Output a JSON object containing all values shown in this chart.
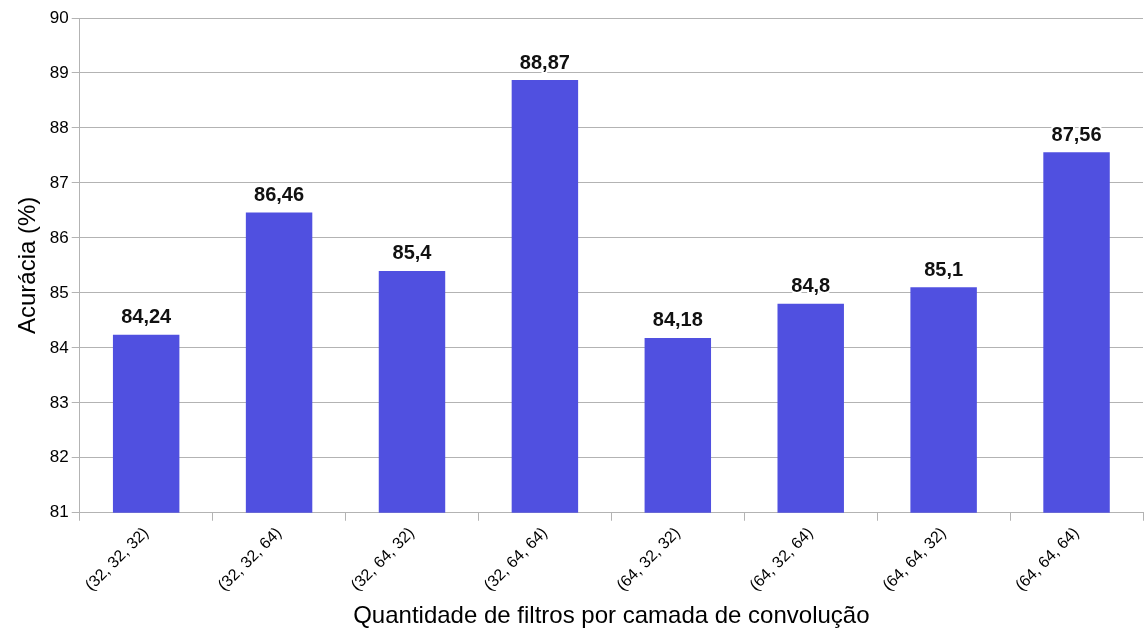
{
  "chart_data": {
    "type": "bar",
    "xlabel": "Quantidade de filtros por camada de convolução",
    "ylabel": "Acurácia (%)",
    "categories": [
      "(32, 32, 32)",
      "(32, 32, 64)",
      "(32, 64, 32)",
      "(32, 64, 64)",
      "(64, 32, 32)",
      "(64, 32, 64)",
      "(64, 64, 32)",
      "(64, 64, 64)"
    ],
    "values": [
      84.24,
      86.46,
      85.4,
      88.87,
      84.18,
      84.8,
      85.1,
      87.56
    ],
    "value_labels": [
      "84,24",
      "86,46",
      "85,4",
      "88,87",
      "84,18",
      "84,8",
      "85,1",
      "87,56"
    ],
    "color": "#5050e0",
    "ylim": [
      81,
      90
    ],
    "yticks": [
      81,
      82,
      83,
      84,
      85,
      86,
      87,
      88,
      89,
      90
    ],
    "grid": "y"
  }
}
